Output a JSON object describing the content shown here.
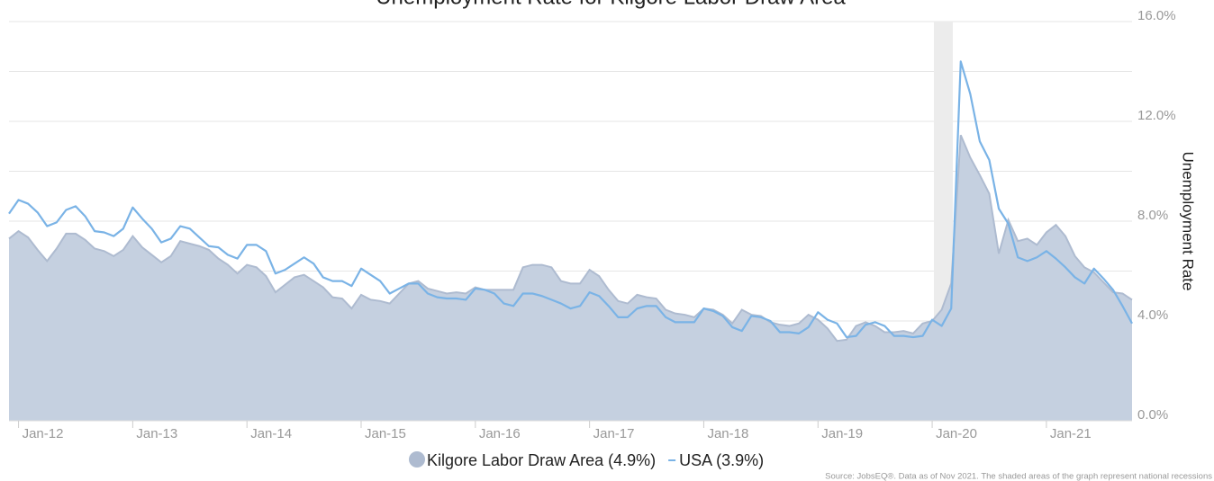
{
  "chart_data": {
    "type": "line",
    "title": "Unemployment Rate for Kilgore Labor Draw Area",
    "y_label": "Unemployment Rate",
    "source": "Source: JobsEQ®. Data as of Nov 2021. The shaded areas of the graph represent national recessions",
    "categories": [
      null,
      "Jan-12",
      null,
      null,
      null,
      null,
      null,
      null,
      null,
      null,
      null,
      null,
      null,
      "Jan-13",
      null,
      null,
      null,
      null,
      null,
      null,
      null,
      null,
      null,
      null,
      null,
      "Jan-14",
      null,
      null,
      null,
      null,
      null,
      null,
      null,
      null,
      null,
      null,
      null,
      "Jan-15",
      null,
      null,
      null,
      null,
      null,
      null,
      null,
      null,
      null,
      null,
      null,
      "Jan-16",
      null,
      null,
      null,
      null,
      null,
      null,
      null,
      null,
      null,
      null,
      null,
      "Jan-17",
      null,
      null,
      null,
      null,
      null,
      null,
      null,
      null,
      null,
      null,
      null,
      "Jan-18",
      null,
      null,
      null,
      null,
      null,
      null,
      null,
      null,
      null,
      null,
      null,
      "Jan-19",
      null,
      null,
      null,
      null,
      null,
      null,
      null,
      null,
      null,
      null,
      null,
      "Jan-20",
      null,
      null,
      null,
      null,
      null,
      null,
      null,
      null,
      null,
      null,
      null,
      "Jan-21",
      null,
      null,
      null,
      null,
      null,
      null,
      null,
      null,
      null
    ],
    "series": [
      {
        "name": "Kilgore Labor Draw Area (4.9%)",
        "kind": "area",
        "color": "#c5d0e0",
        "line_color": "#aebbd0",
        "values": [
          7.3,
          7.6,
          7.35,
          6.85,
          6.4,
          6.9,
          7.5,
          7.5,
          7.25,
          6.9,
          6.8,
          6.6,
          6.85,
          7.4,
          6.95,
          6.65,
          6.35,
          6.6,
          7.2,
          7.1,
          7.0,
          6.85,
          6.5,
          6.25,
          5.9,
          6.25,
          6.15,
          5.8,
          5.15,
          5.45,
          5.75,
          5.85,
          5.6,
          5.35,
          4.95,
          4.9,
          4.5,
          5.05,
          4.85,
          4.8,
          4.7,
          5.1,
          5.5,
          5.6,
          5.3,
          5.2,
          5.1,
          5.15,
          5.1,
          5.35,
          5.25,
          5.25,
          5.25,
          5.25,
          6.15,
          6.25,
          6.25,
          6.15,
          5.6,
          5.5,
          5.5,
          6.05,
          5.8,
          5.25,
          4.8,
          4.7,
          5.05,
          4.95,
          4.9,
          4.45,
          4.3,
          4.25,
          4.15,
          4.5,
          4.45,
          4.25,
          3.9,
          4.45,
          4.25,
          4.2,
          3.95,
          3.85,
          3.8,
          3.9,
          4.25,
          4.05,
          3.7,
          3.2,
          3.25,
          3.8,
          3.95,
          3.8,
          3.55,
          3.55,
          3.6,
          3.5,
          3.9,
          4.0,
          4.45,
          5.5,
          11.45,
          10.55,
          9.85,
          9.1,
          6.7,
          8.05,
          7.2,
          7.3,
          7.05,
          7.55,
          7.85,
          7.4,
          6.6,
          6.15,
          5.95,
          5.55,
          5.15,
          5.1,
          4.85
        ]
      },
      {
        "name": "USA (3.9%)",
        "kind": "line",
        "color": "#7ab3e6",
        "values": [
          8.3,
          8.85,
          8.7,
          8.35,
          7.8,
          7.95,
          8.45,
          8.6,
          8.2,
          7.6,
          7.55,
          7.4,
          7.7,
          8.55,
          8.1,
          7.7,
          7.15,
          7.3,
          7.8,
          7.7,
          7.35,
          7.0,
          6.95,
          6.65,
          6.5,
          7.05,
          7.05,
          6.8,
          5.9,
          6.05,
          6.3,
          6.55,
          6.3,
          5.75,
          5.6,
          5.6,
          5.4,
          6.1,
          5.85,
          5.6,
          5.1,
          5.3,
          5.5,
          5.5,
          5.1,
          4.95,
          4.9,
          4.9,
          4.85,
          5.3,
          5.25,
          5.1,
          4.7,
          4.6,
          5.1,
          5.1,
          5.0,
          4.85,
          4.7,
          4.5,
          4.6,
          5.15,
          5.0,
          4.6,
          4.15,
          4.15,
          4.5,
          4.6,
          4.6,
          4.15,
          3.95,
          3.95,
          3.95,
          4.5,
          4.4,
          4.2,
          3.75,
          3.6,
          4.2,
          4.15,
          4.0,
          3.55,
          3.55,
          3.5,
          3.75,
          4.35,
          4.05,
          3.9,
          3.35,
          3.4,
          3.85,
          3.95,
          3.8,
          3.4,
          3.4,
          3.35,
          3.4,
          4.05,
          3.8,
          4.5,
          14.4,
          13.1,
          11.2,
          10.45,
          8.5,
          7.9,
          6.55,
          6.4,
          6.55,
          6.8,
          6.5,
          6.15,
          5.75,
          5.5,
          6.1,
          5.7,
          5.25,
          4.6,
          3.9
        ]
      }
    ],
    "ylim": [
      0,
      16
    ],
    "yticks": [
      {
        "value": 0,
        "label": "0.0%"
      },
      {
        "value": 2,
        "label": null
      },
      {
        "value": 4,
        "label": "4.0%"
      },
      {
        "value": 6,
        "label": null
      },
      {
        "value": 8,
        "label": "8.0%"
      },
      {
        "value": 10,
        "label": null
      },
      {
        "value": 12,
        "label": "12.0%"
      },
      {
        "value": 14,
        "label": null
      },
      {
        "value": 16,
        "label": "16.0%"
      }
    ],
    "grid": true,
    "y_axis_side": "right"
  }
}
